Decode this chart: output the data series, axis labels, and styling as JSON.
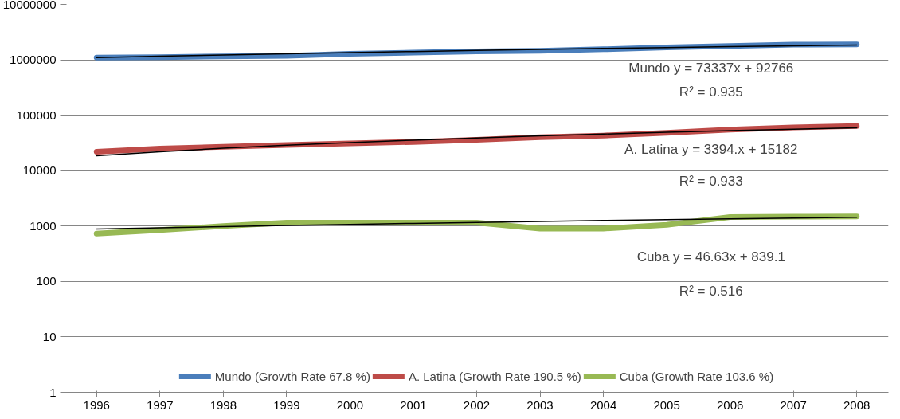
{
  "chart_data": {
    "type": "line",
    "categories": [
      "1996",
      "1997",
      "1998",
      "1999",
      "2000",
      "2001",
      "2002",
      "2003",
      "2004",
      "2005",
      "2006",
      "2007",
      "2008"
    ],
    "log": "y",
    "ylim": [
      1,
      10000000
    ],
    "yticks": [
      1,
      10,
      100,
      1000,
      10000,
      100000,
      1000000,
      10000000
    ],
    "grid": "y",
    "legend": "bottom",
    "line_style": "solid",
    "marker": "none",
    "series": [
      {
        "name": "Mundo (Growth Rate 67.8 %)",
        "color": "#4a7ebb",
        "values": [
          1100000,
          1120000,
          1150000,
          1180000,
          1280000,
          1350000,
          1420000,
          1450000,
          1550000,
          1680000,
          1780000,
          1880000,
          1900000
        ]
      },
      {
        "name": "A. Latina (Growth Rate 190.5 %)",
        "color": "#be4b48",
        "values": [
          22000,
          25000,
          27000,
          29000,
          31000,
          33000,
          36000,
          40000,
          43000,
          48000,
          55000,
          60000,
          64000
        ]
      },
      {
        "name": "Cuba (Growth Rate 103.6 %)",
        "color": "#98b954",
        "values": [
          730,
          850,
          1000,
          1150,
          1150,
          1150,
          1150,
          900,
          900,
          1050,
          1450,
          1480,
          1486
        ]
      },
      {
        "color": "#000000",
        "values": [
          1100000,
          1162500,
          1225000,
          1287500,
          1350000,
          1412500,
          1475000,
          1537500,
          1600000,
          1662500,
          1725000,
          1787500,
          1850000
        ]
      },
      {
        "color": "#000000",
        "values": [
          18576,
          21970,
          25364,
          28758,
          32152,
          35546,
          38940,
          42334,
          45728,
          49122,
          52516,
          55910,
          59304
        ]
      },
      {
        "color": "#000000",
        "values": [
          886,
          932,
          979,
          1025,
          1072,
          1119,
          1165,
          1212,
          1259,
          1305,
          1352,
          1398,
          1445
        ]
      }
    ],
    "annotations": [
      "Mundo y = 73337x + 92766",
      "R² = 0.935",
      "A. Latina y = 3394.x + 15182",
      "R² = 0.933",
      "Cuba y = 46.63x + 839.1",
      "R² = 0.516"
    ]
  }
}
